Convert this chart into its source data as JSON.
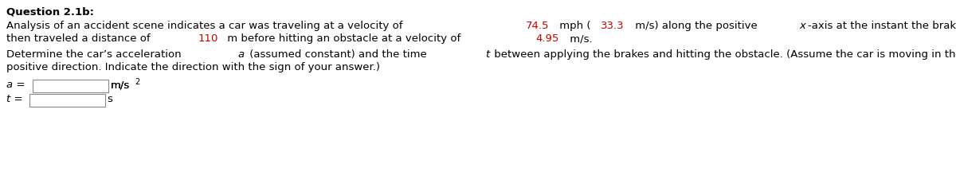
{
  "title": "Question 2.1b:",
  "line1_parts": [
    {
      "text": "Analysis of an accident scene indicates a car was traveling at a velocity of ",
      "color": "#000000",
      "bold": false,
      "italic": false
    },
    {
      "text": "74.5",
      "color": "#cc0000",
      "bold": false,
      "italic": false
    },
    {
      "text": " mph (",
      "color": "#000000",
      "bold": false,
      "italic": false
    },
    {
      "text": "33.3",
      "color": "#cc0000",
      "bold": false,
      "italic": false
    },
    {
      "text": " m/s) along the positive ",
      "color": "#000000",
      "bold": false,
      "italic": false
    },
    {
      "text": "x",
      "color": "#000000",
      "bold": false,
      "italic": true
    },
    {
      "text": "-axis at the instant the brakes were applied and",
      "color": "#000000",
      "bold": false,
      "italic": false
    }
  ],
  "line2_parts": [
    {
      "text": "then traveled a distance of ",
      "color": "#000000",
      "bold": false,
      "italic": false
    },
    {
      "text": "110",
      "color": "#cc0000",
      "bold": false,
      "italic": false
    },
    {
      "text": " m before hitting an obstacle at a velocity of ",
      "color": "#000000",
      "bold": false,
      "italic": false
    },
    {
      "text": "4.95",
      "color": "#cc0000",
      "bold": false,
      "italic": false
    },
    {
      "text": " m/s.",
      "color": "#000000",
      "bold": false,
      "italic": false
    }
  ],
  "line3_parts": [
    {
      "text": "Determine the car’s acceleration ",
      "color": "#000000",
      "bold": false,
      "italic": false
    },
    {
      "text": "a",
      "color": "#000000",
      "bold": false,
      "italic": true
    },
    {
      "text": " (assumed constant) and the time ",
      "color": "#000000",
      "bold": false,
      "italic": false
    },
    {
      "text": "t",
      "color": "#000000",
      "bold": false,
      "italic": true
    },
    {
      "text": " between applying the brakes and hitting the obstacle. (Assume the car is moving in the",
      "color": "#000000",
      "bold": false,
      "italic": false
    }
  ],
  "line4_parts": [
    {
      "text": "positive direction. Indicate the direction with the sign of your answer.)",
      "color": "#000000",
      "bold": false,
      "italic": false
    }
  ],
  "a_label": "a =",
  "t_label": "t =",
  "a_unit": "m/s",
  "a_unit_sup": "2",
  "t_unit": "s",
  "background_color": "#ffffff",
  "font_size": 9.5,
  "title_font_size": 9.5,
  "box_color": "#888888"
}
